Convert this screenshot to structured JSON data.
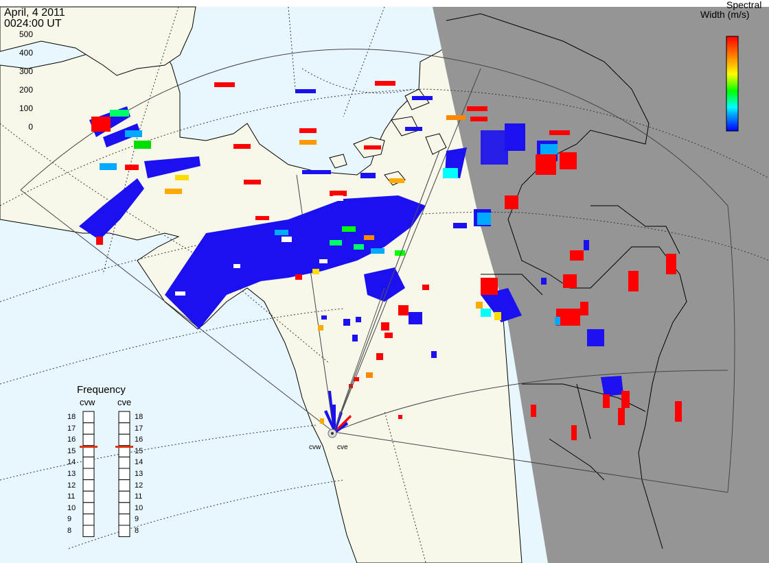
{
  "header": {
    "date": "April, 4 2011",
    "time": "0024:00 UT"
  },
  "colorbar": {
    "title_line1": "Spectral",
    "title_line2": "Width (m/s)",
    "ticks": [
      "500",
      "400",
      "300",
      "200",
      "100",
      "0"
    ],
    "stops": [
      "#0000ff",
      "#00aaff",
      "#00ffff",
      "#00ff00",
      "#ffff00",
      "#ff8800",
      "#ff0000"
    ]
  },
  "frequency": {
    "title": "Frequency",
    "cvw_label": "cvw",
    "cve_label": "cve",
    "ticks": [
      "18",
      "17",
      "16",
      "15",
      "14",
      "13",
      "12",
      "11",
      "10",
      "9",
      "8"
    ],
    "cvw_current_mhz": 15.4,
    "cve_current_mhz": 15.4,
    "marker_color": "#dd3311"
  },
  "sites": {
    "west": "cvw",
    "east": "cve"
  },
  "map_colors": {
    "ocean": "#e8f6fd",
    "land": "#f7f7ea",
    "night": "#959595",
    "radar_blue": "#1a10f0"
  }
}
